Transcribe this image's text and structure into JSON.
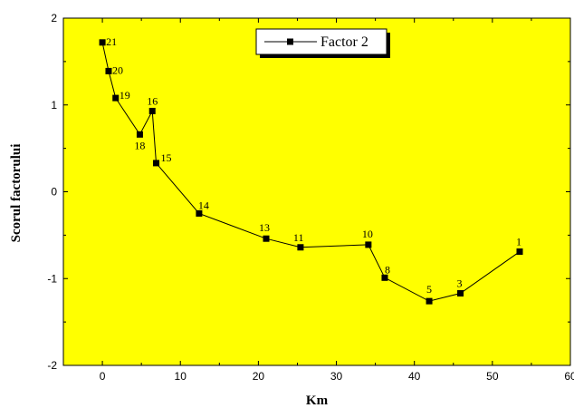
{
  "chart_data": {
    "type": "line",
    "xlabel": "Km",
    "ylabel": "Scorul factorului",
    "xlim": [
      -5,
      60
    ],
    "ylim": [
      -2,
      2
    ],
    "xticks": [
      0,
      10,
      20,
      30,
      40,
      50,
      60
    ],
    "yticks": [
      2,
      1,
      0,
      -1,
      -2
    ],
    "xtick_labels": [
      "0",
      "10",
      "20",
      "30",
      "40",
      "50",
      "60"
    ],
    "ytick_labels": [
      "2",
      "1",
      "0",
      "-1",
      "-2"
    ],
    "background_color": "#ffff00",
    "line_color": "#000000",
    "grid": false,
    "legend_position": "top-center",
    "series": [
      {
        "name": "Factor 2",
        "points": [
          {
            "x": 0.0,
            "y": 1.72,
            "label": "21"
          },
          {
            "x": 0.8,
            "y": 1.39,
            "label": "20"
          },
          {
            "x": 1.7,
            "y": 1.08,
            "label": "19"
          },
          {
            "x": 4.8,
            "y": 0.66,
            "label": "18"
          },
          {
            "x": 6.4,
            "y": 0.93,
            "label": "16"
          },
          {
            "x": 6.9,
            "y": 0.33,
            "label": "15"
          },
          {
            "x": 12.4,
            "y": -0.25,
            "label": "14"
          },
          {
            "x": 21.0,
            "y": -0.54,
            "label": "13"
          },
          {
            "x": 25.4,
            "y": -0.64,
            "label": "11"
          },
          {
            "x": 34.1,
            "y": -0.61,
            "label": "10"
          },
          {
            "x": 36.2,
            "y": -0.99,
            "label": "8"
          },
          {
            "x": 41.9,
            "y": -1.26,
            "label": "5"
          },
          {
            "x": 45.9,
            "y": -1.17,
            "label": "3"
          },
          {
            "x": 53.5,
            "y": -0.69,
            "label": "1"
          }
        ]
      }
    ]
  }
}
